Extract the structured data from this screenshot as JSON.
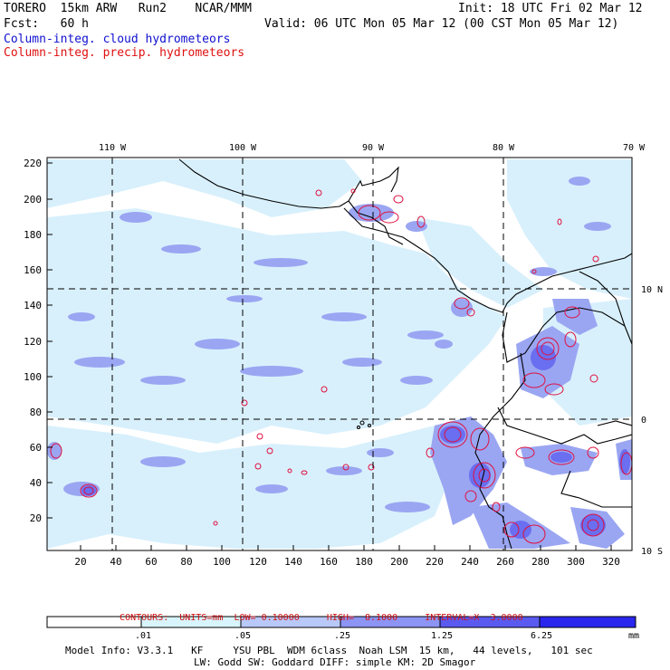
{
  "header": {
    "line1_left": "TORERO  15km ARW   Run2    NCAR/MMM",
    "line1_right": "Init: 18 UTC Fri 02 Mar 12",
    "line2_left": "Fcst:   60 h",
    "line2_right": "Valid: 06 UTC Mon 05 Mar 12 (00 CST Mon 05 Mar 12)",
    "field1": "Column-integ. cloud hydrometeors",
    "field2": "Column-integ. precip. hydrometeors"
  },
  "map": {
    "lon_labels": [
      "110 W",
      "100 W",
      "90 W",
      "80 W",
      "70 W"
    ],
    "lat_labels": [
      "10 N",
      "0",
      "10 S"
    ],
    "y_ticks": [
      "220",
      "200",
      "180",
      "160",
      "140",
      "120",
      "100",
      "80",
      "60",
      "40",
      "20"
    ],
    "x_ticks": [
      "20",
      "40",
      "60",
      "80",
      "100",
      "120",
      "140",
      "160",
      "180",
      "200",
      "220",
      "240",
      "260",
      "280",
      "300",
      "320"
    ],
    "colors": {
      "cloud_light": "#d8f0fc",
      "cloud_mid": "#9aa6f2",
      "cloud_dark": "#6a6ef0",
      "precip_contour": "#e01040",
      "coast": "#000000"
    }
  },
  "contours": {
    "label": "CONTOURS:",
    "units": "UNITS=mm",
    "low": "LOW= 0.10000",
    "high": "HIGH=  8.1000",
    "interval": "INTERVAL=X  3.0000"
  },
  "colorbar": {
    "ticks": [
      ".01",
      ".05",
      ".25",
      "1.25",
      "6.25"
    ],
    "unit": "mm",
    "colors": [
      "#ffffff",
      "#d8f4fc",
      "#b8c8f8",
      "#9098f6",
      "#6a6cf2",
      "#4a48f0",
      "#2020ee"
    ]
  },
  "footer": {
    "line1": "Model Info: V3.3.1   KF     YSU PBL  WDM 6class  Noah LSM  15 km,   44 levels,   101 sec",
    "line2": "LW: Godd SW: Goddard DIFF: simple KM: 2D Smagor"
  }
}
